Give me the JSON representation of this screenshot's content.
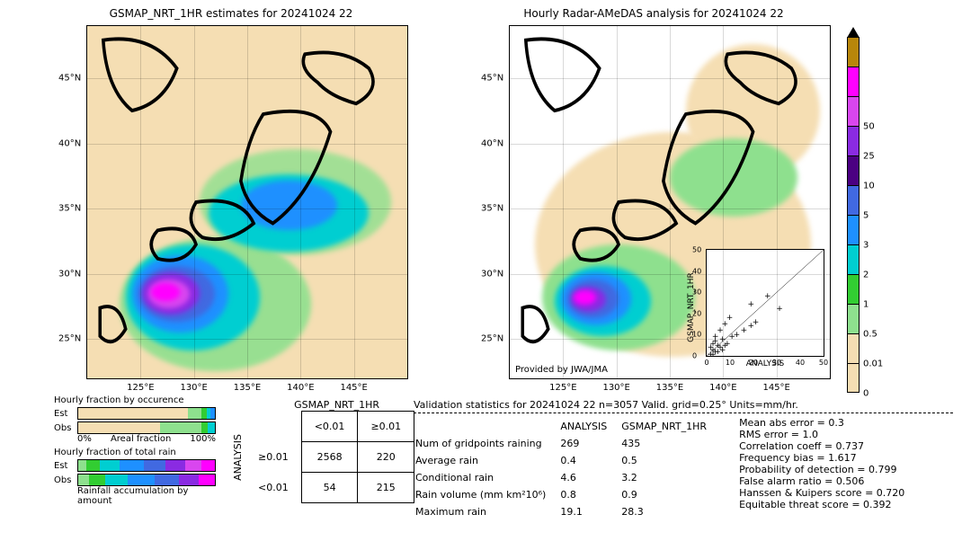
{
  "meta": {
    "datetime": "20241024 22",
    "units": "mm/hr.",
    "grid": "0.25°",
    "n": 3057
  },
  "maps": {
    "left": {
      "title": "GSMAP_NRT_1HR estimates for 20241024 22",
      "xlim": [
        120,
        150
      ],
      "ylim": [
        22,
        49
      ],
      "xticks": [
        "125°E",
        "130°E",
        "135°E",
        "140°E",
        "145°E"
      ],
      "yticks": [
        "25°N",
        "30°N",
        "35°N",
        "40°N",
        "45°N"
      ]
    },
    "right": {
      "title": "Hourly Radar-AMeDAS analysis for 20241024 22",
      "xlim": [
        120,
        150
      ],
      "ylim": [
        22,
        49
      ],
      "xticks": [
        "125°E",
        "130°E",
        "135°E",
        "140°E",
        "145°E"
      ],
      "yticks": [
        "25°N",
        "30°N",
        "35°N",
        "40°N",
        "45°N"
      ],
      "credit": "Provided by JWA/JMA"
    }
  },
  "colorbar": {
    "labels": [
      "0",
      "0.01",
      "0.5",
      "1",
      "2",
      "3",
      "5",
      "10",
      "25",
      "50"
    ],
    "colors": [
      "#f5deb3",
      "#f5deb3",
      "#8ee08e",
      "#32cd32",
      "#00ced1",
      "#1e90ff",
      "#4169e1",
      "#4b0082",
      "#8a2be2",
      "#d946ef",
      "#ff00ff",
      "#b8860b"
    ],
    "peak": "#000000"
  },
  "rain_palette": {
    "bg": "#f5deb3",
    "trace": "#8ee08e",
    "g1": "#32cd32",
    "c": "#00ced1",
    "b1": "#1e90ff",
    "b2": "#4169e1",
    "p1": "#8a2be2",
    "p2": "#d946ef",
    "m": "#ff00ff"
  },
  "scatter_inset": {
    "xlabel": "ANALYSIS",
    "ylabel": "GSMAP_NRT_1HR",
    "lim": [
      0,
      50
    ],
    "ticks": [
      0,
      10,
      20,
      30,
      40,
      50
    ]
  },
  "occurrence": {
    "title": "Hourly fraction by occurence",
    "row_labels": [
      "Est",
      "Obs"
    ],
    "axis": "Areal fraction",
    "axis_ticks": [
      "0%",
      "100%"
    ]
  },
  "totalrain": {
    "title": "Hourly fraction of total rain",
    "row_labels": [
      "Est",
      "Obs"
    ],
    "footer": "Rainfall accumulation by amount"
  },
  "contingency": {
    "col_header": "GSMAP_NRT_1HR",
    "row_header": "ANALYSIS",
    "col_labels": [
      "<0.01",
      "≥0.01"
    ],
    "row_labels": [
      "≥0.01",
      "<0.01"
    ],
    "cells": [
      [
        2568,
        220
      ],
      [
        54,
        215
      ]
    ]
  },
  "validation": {
    "title": "Validation statistics for 20241024 22  n=3057 Valid. grid=0.25° Units=mm/hr.",
    "col_headers": [
      "ANALYSIS",
      "GSMAP_NRT_1HR"
    ],
    "rows": [
      {
        "label": "Num of gridpoints raining",
        "a": "269",
        "b": "435"
      },
      {
        "label": "Average rain",
        "a": "0.4",
        "b": "0.5"
      },
      {
        "label": "Conditional rain",
        "a": "4.6",
        "b": "3.2"
      },
      {
        "label": "Rain volume (mm km²10⁶)",
        "a": "0.8",
        "b": "0.9"
      },
      {
        "label": "Maximum rain",
        "a": "19.1",
        "b": "28.3"
      }
    ],
    "metrics": [
      "Mean abs error =   0.3",
      "RMS error =   1.0",
      "Correlation coeff =  0.737",
      "Frequency bias =  1.617",
      "Probability of detection =  0.799",
      "False alarm ratio =  0.506",
      "Hanssen & Kuipers score =  0.720",
      "Equitable threat score =  0.392"
    ]
  }
}
